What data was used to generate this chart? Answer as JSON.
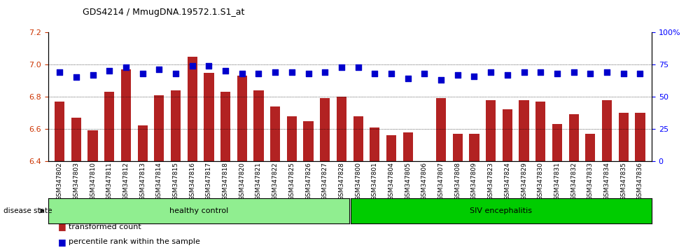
{
  "title": "GDS4214 / MmugDNA.19572.1.S1_at",
  "samples": [
    "GSM347802",
    "GSM347803",
    "GSM347810",
    "GSM347811",
    "GSM347812",
    "GSM347813",
    "GSM347814",
    "GSM347815",
    "GSM347816",
    "GSM347817",
    "GSM347818",
    "GSM347820",
    "GSM347821",
    "GSM347822",
    "GSM347825",
    "GSM347826",
    "GSM347827",
    "GSM347828",
    "GSM347800",
    "GSM347801",
    "GSM347804",
    "GSM347805",
    "GSM347806",
    "GSM347807",
    "GSM347808",
    "GSM347809",
    "GSM347823",
    "GSM347824",
    "GSM347829",
    "GSM347830",
    "GSM347831",
    "GSM347832",
    "GSM347833",
    "GSM347834",
    "GSM347835",
    "GSM347836"
  ],
  "bar_values": [
    6.77,
    6.67,
    6.59,
    6.83,
    6.97,
    6.62,
    6.81,
    6.84,
    7.05,
    6.95,
    6.83,
    6.93,
    6.84,
    6.74,
    6.68,
    6.65,
    6.79,
    6.8,
    6.68,
    6.61,
    6.56,
    6.58,
    6.4,
    6.79,
    6.57,
    6.57,
    6.78,
    6.72,
    6.78,
    6.77,
    6.63,
    6.69,
    6.57,
    6.78,
    6.7,
    6.7
  ],
  "percentile_values": [
    69,
    65,
    67,
    70,
    73,
    68,
    71,
    68,
    74,
    74,
    70,
    68,
    68,
    69,
    69,
    68,
    69,
    73,
    73,
    68,
    68,
    64,
    68,
    63,
    67,
    66,
    69,
    67,
    69,
    69,
    68,
    69,
    68,
    69,
    68,
    68
  ],
  "group1_count": 18,
  "group2_count": 18,
  "group1_label": "healthy control",
  "group2_label": "SIV encephalitis",
  "group1_color": "#90EE90",
  "group2_color": "#00CC00",
  "bar_color": "#B22222",
  "dot_color": "#0000CC",
  "ylim_left": [
    6.4,
    7.2
  ],
  "ylim_right": [
    0,
    100
  ],
  "yticks_left": [
    6.4,
    6.6,
    6.8,
    7.0,
    7.2
  ],
  "yticks_right": [
    0,
    25,
    50,
    75,
    100
  ],
  "ytick_labels_right": [
    "0",
    "25",
    "50",
    "75",
    "100%"
  ],
  "grid_values": [
    6.6,
    6.8,
    7.0
  ],
  "legend_bar_label": "transformed count",
  "legend_dot_label": "percentile rank within the sample",
  "disease_state_label": "disease state"
}
